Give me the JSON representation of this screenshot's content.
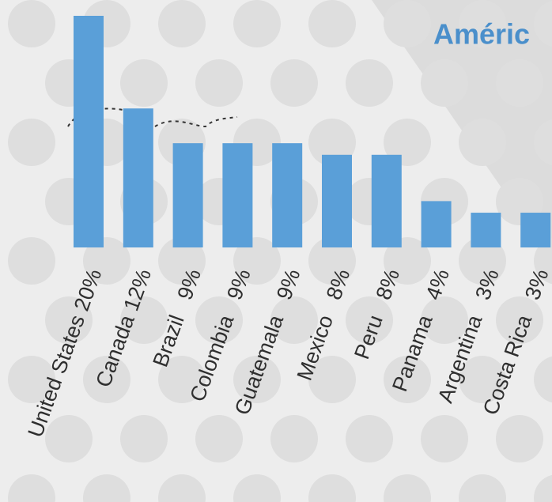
{
  "chart_data": {
    "type": "bar",
    "title": "Améric",
    "categories": [
      "United States",
      "Canada",
      "Brazil",
      "Colombia",
      "Guatemala",
      "Mexico",
      "Peru",
      "Panama",
      "Argentina",
      "Costa Rica"
    ],
    "values": [
      20,
      12,
      9,
      9,
      9,
      8,
      8,
      4,
      3,
      3
    ],
    "value_labels": [
      "20%",
      "12%",
      "9%",
      "9%",
      "9%",
      "8%",
      "8%",
      "4%",
      "3%",
      "3%"
    ],
    "color": "#5a9fd8"
  }
}
